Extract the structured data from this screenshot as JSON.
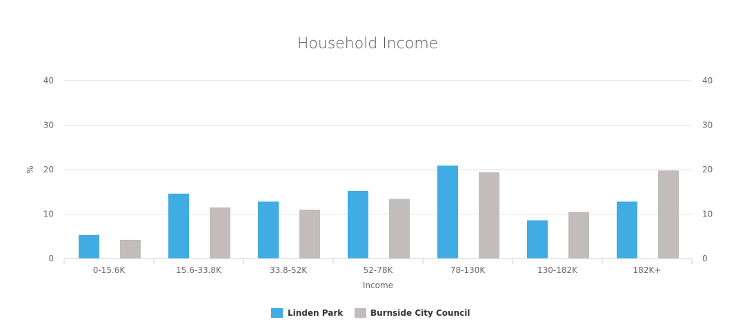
{
  "chart_data": {
    "type": "bar",
    "title": "Household Income",
    "xlabel": "Income",
    "ylabel": "%",
    "ylim": [
      0,
      40
    ],
    "yticks": [
      "0",
      "10",
      "20",
      "30",
      "40"
    ],
    "categories": [
      "0-15.6K",
      "15.6-33.8K",
      "33.8-52K",
      "52-78K",
      "78-130K",
      "130-182K",
      "182K+"
    ],
    "series": [
      {
        "name": "Linden Park",
        "color": "#41ace3",
        "values": [
          5.3,
          14.6,
          12.8,
          15.2,
          20.9,
          8.6,
          12.8
        ]
      },
      {
        "name": "Burnside City Council",
        "color": "#c2bcbc",
        "values": [
          4.2,
          11.5,
          11.0,
          13.4,
          19.4,
          10.5,
          19.8
        ]
      }
    ],
    "grid": true,
    "legend_position": "bottom-center"
  }
}
